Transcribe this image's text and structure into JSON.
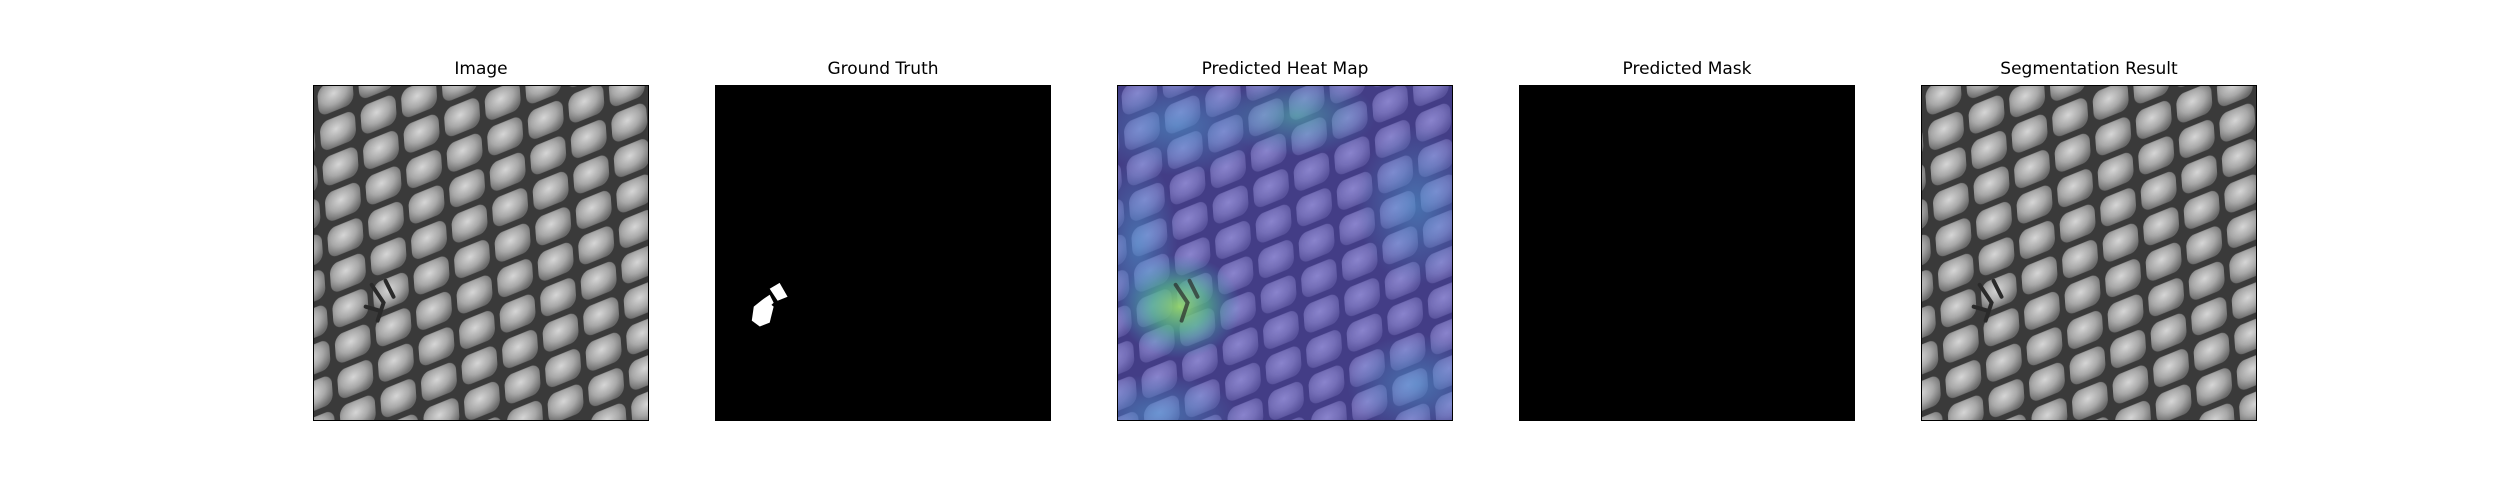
{
  "figure": {
    "panels": [
      {
        "id": "image",
        "title": "Image"
      },
      {
        "id": "ground_truth",
        "title": "Ground Truth"
      },
      {
        "id": "heat_map",
        "title": "Predicted Heat Map"
      },
      {
        "id": "mask",
        "title": "Predicted Mask"
      },
      {
        "id": "segmentation",
        "title": "Segmentation Result"
      }
    ]
  },
  "colors": {
    "background": "#ffffff",
    "frame": "#000000",
    "mask_background": "#000000",
    "mask_foreground": "#ffffff",
    "texture_dark": "#3a3a3a",
    "texture_cell": "#9a9a9a",
    "texture_highlight": "#c8c8c8",
    "heat_low": "#4b3fc4",
    "heat_mid": "#3fa3c8",
    "heat_high": "#7fd06a"
  }
}
